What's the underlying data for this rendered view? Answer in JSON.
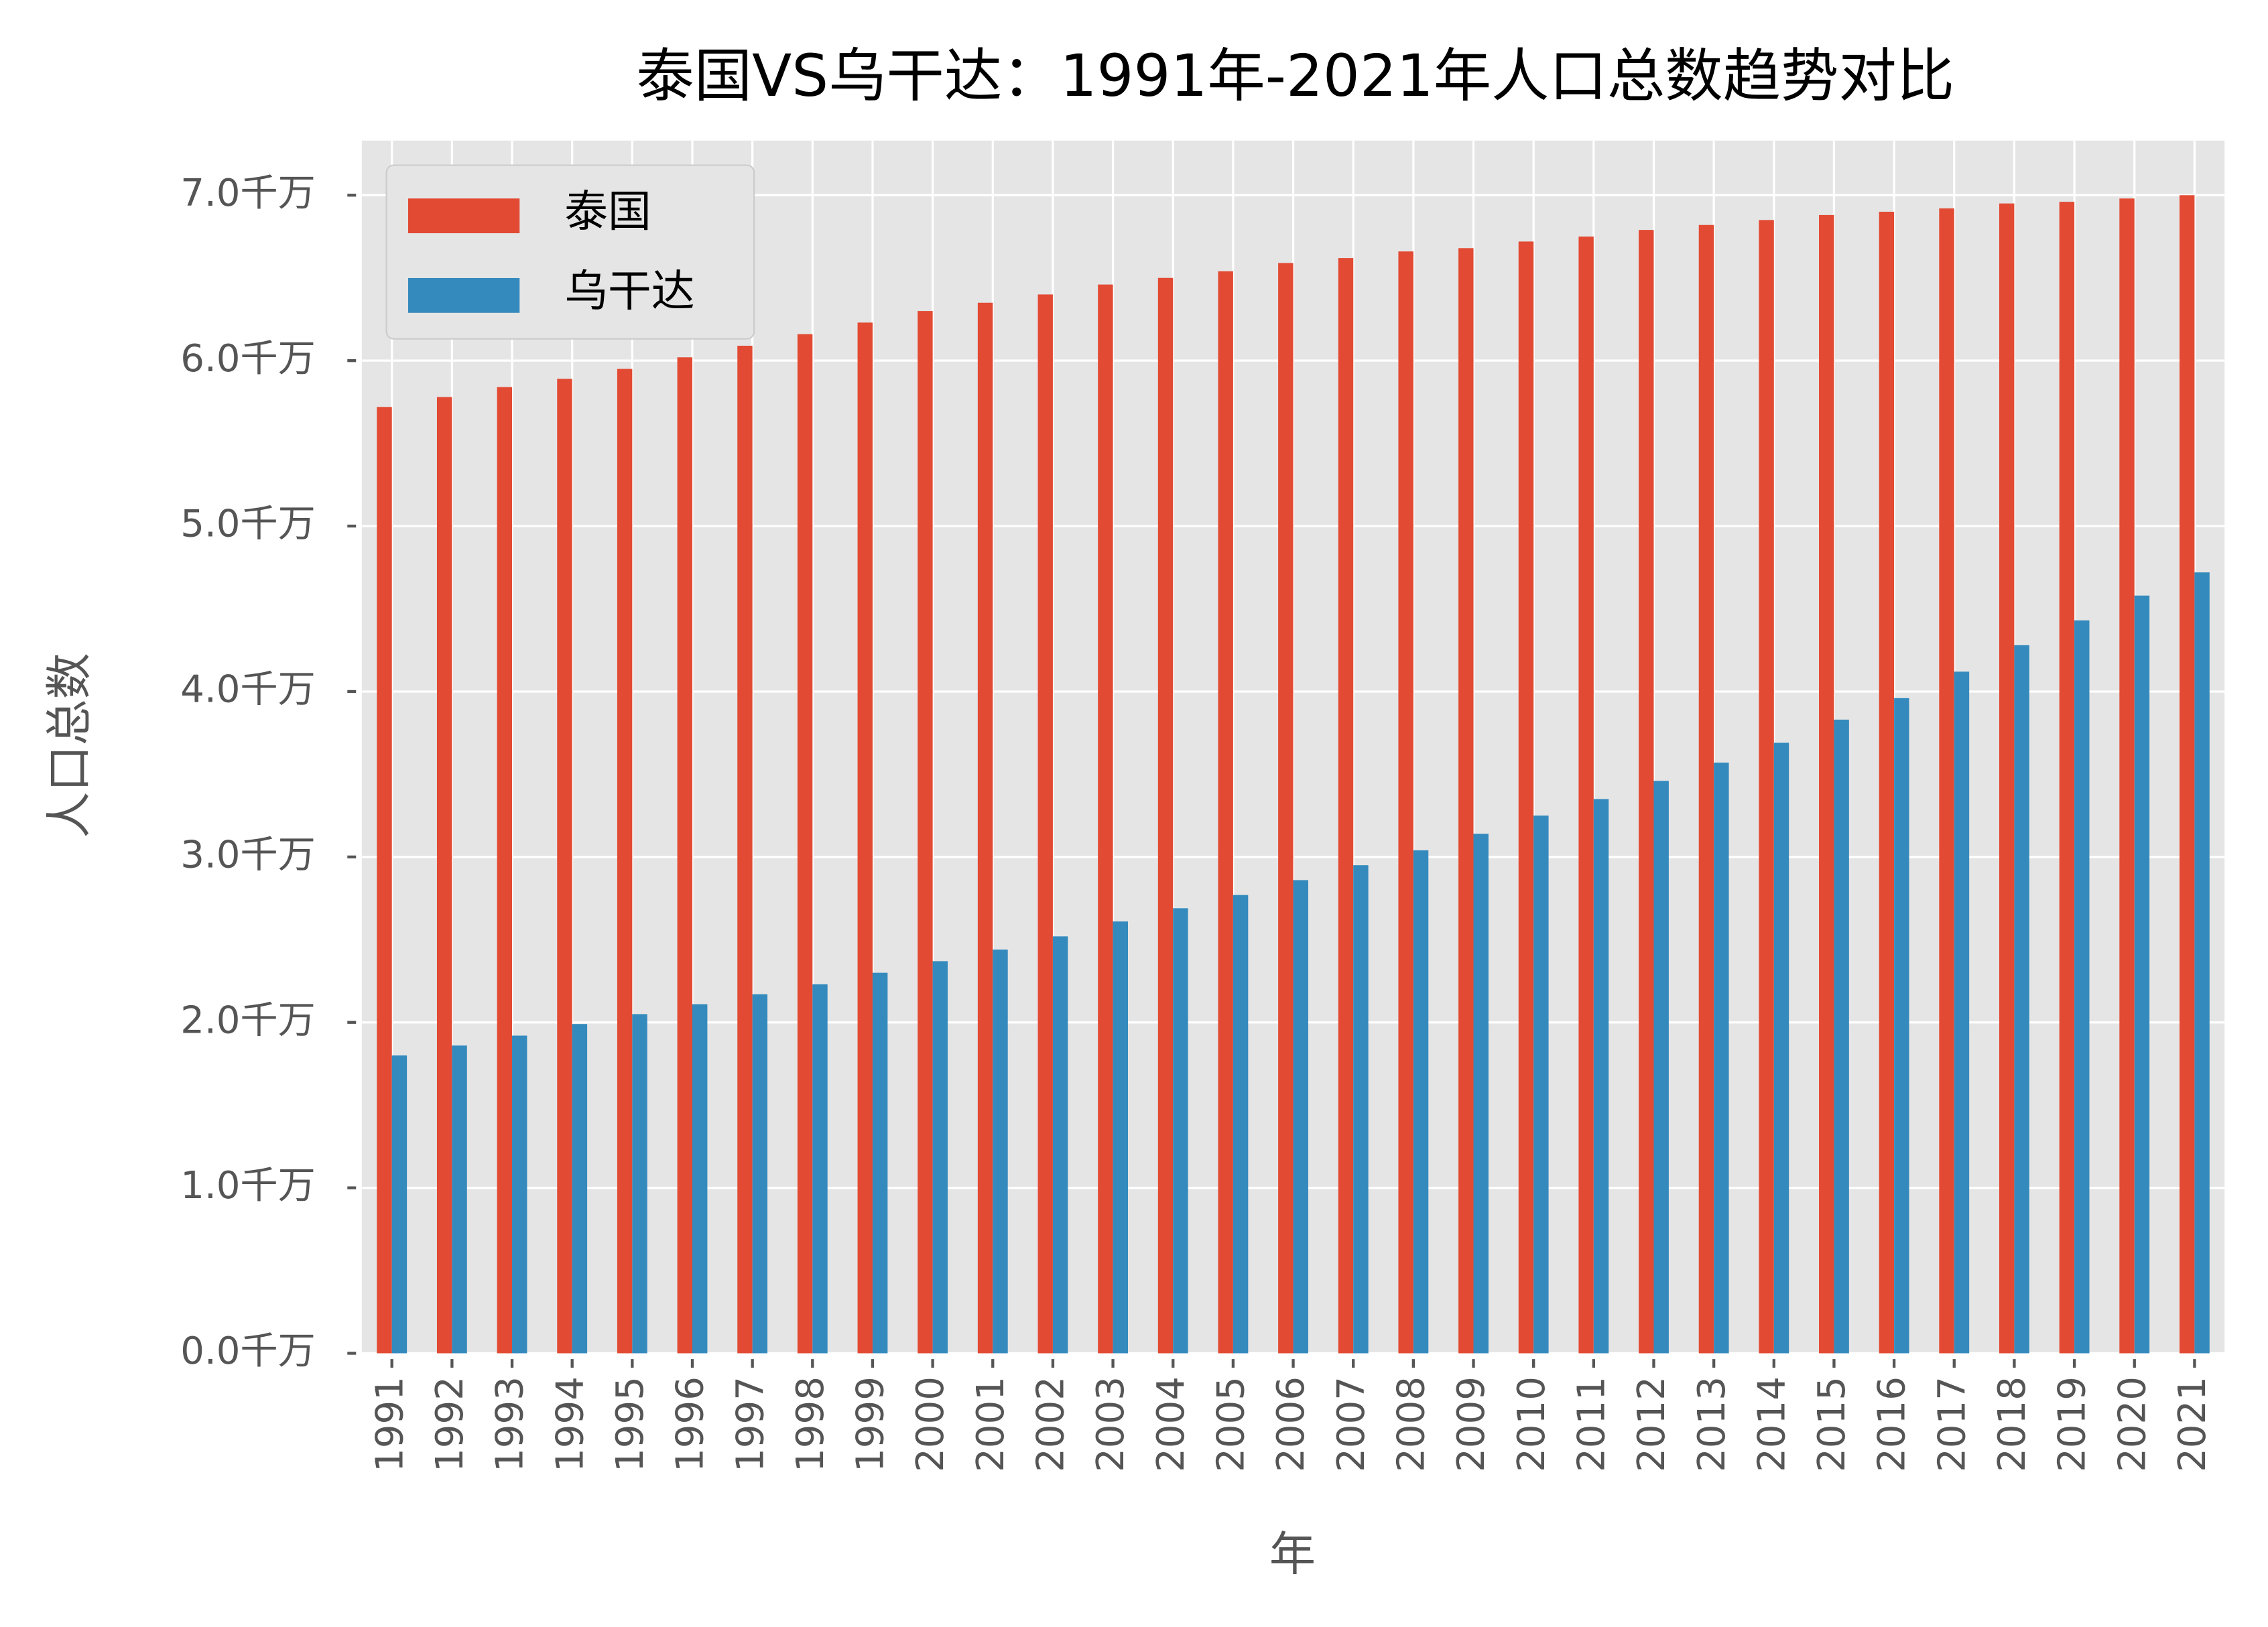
{
  "chart_data": {
    "type": "bar",
    "title": "泰国VS乌干达：1991年-2021年人口总数趋势对比",
    "x_label": "年",
    "y_label": "人口总数",
    "categories": [
      "1991",
      "1992",
      "1993",
      "1994",
      "1995",
      "1996",
      "1997",
      "1998",
      "1999",
      "2000",
      "2001",
      "2002",
      "2003",
      "2004",
      "2005",
      "2006",
      "2007",
      "2008",
      "2009",
      "2010",
      "2011",
      "2012",
      "2013",
      "2014",
      "2015",
      "2016",
      "2017",
      "2018",
      "2019",
      "2020",
      "2021"
    ],
    "series": [
      {
        "name": "泰国",
        "color": "#e24a33",
        "values": [
          5.72,
          5.78,
          5.84,
          5.89,
          5.95,
          6.02,
          6.09,
          6.16,
          6.23,
          6.3,
          6.35,
          6.4,
          6.46,
          6.5,
          6.54,
          6.59,
          6.62,
          6.66,
          6.68,
          6.72,
          6.75,
          6.79,
          6.82,
          6.85,
          6.88,
          6.9,
          6.92,
          6.95,
          6.96,
          6.98,
          7.0
        ]
      },
      {
        "name": "乌干达",
        "color": "#348abd",
        "values": [
          1.8,
          1.86,
          1.92,
          1.99,
          2.05,
          2.11,
          2.17,
          2.23,
          2.3,
          2.37,
          2.44,
          2.52,
          2.61,
          2.69,
          2.77,
          2.86,
          2.95,
          3.04,
          3.14,
          3.25,
          3.35,
          3.46,
          3.57,
          3.69,
          3.83,
          3.96,
          4.12,
          4.28,
          4.43,
          4.58,
          4.72
        ]
      }
    ],
    "ylim": [
      0,
      7.33
    ],
    "yticks": [
      {
        "value": 0,
        "label": "0.0千万"
      },
      {
        "value": 1,
        "label": "1.0千万"
      },
      {
        "value": 2,
        "label": "2.0千万"
      },
      {
        "value": 3,
        "label": "3.0千万"
      },
      {
        "value": 4,
        "label": "4.0千万"
      },
      {
        "value": 5,
        "label": "5.0千万"
      },
      {
        "value": 6,
        "label": "6.0千万"
      },
      {
        "value": 7,
        "label": "7.0千万"
      }
    ],
    "grid": true,
    "legend": "upper left"
  }
}
